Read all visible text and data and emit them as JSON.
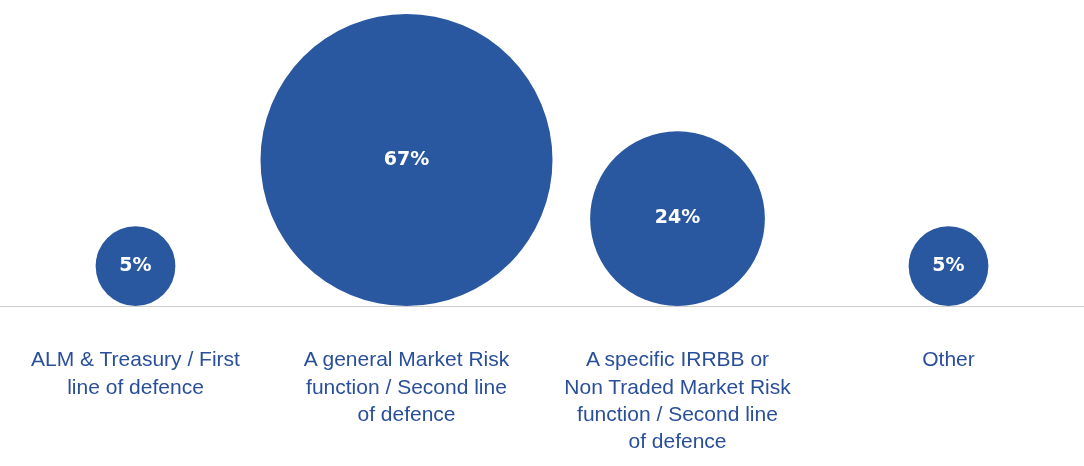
{
  "chart_data": {
    "type": "other",
    "categories": [
      "ALM & Treasury / First line of defence",
      "A general Market Risk function / Second line of defence",
      "A specific IRRBB or Non Traded Market Risk function / Second line of defence",
      "Other"
    ],
    "values": [
      5,
      67,
      24,
      5
    ],
    "value_labels": [
      "5%",
      "67%",
      "24%",
      "5%"
    ],
    "color": "#2a58a0"
  }
}
